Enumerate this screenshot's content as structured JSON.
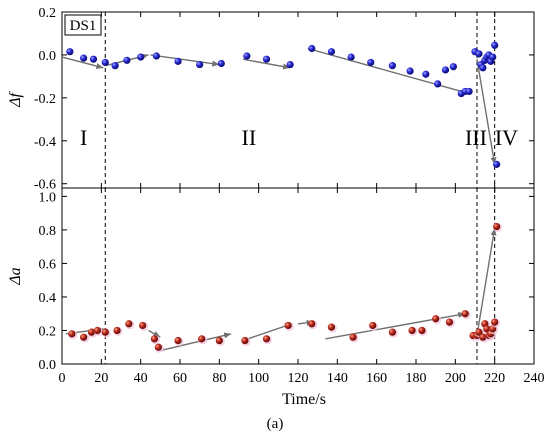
{
  "chart_data": [
    {
      "type": "scatter",
      "panel": "top",
      "tag": "DS1",
      "ylabel": "Δf",
      "ylim": [
        -0.62,
        0.2
      ],
      "yticks": [
        0.2,
        0.0,
        -0.2,
        -0.4,
        -0.6
      ],
      "xlim": [
        0,
        240
      ],
      "grid": false,
      "marker_color": "#2b2bd6",
      "points": [
        [
          4,
          0.015
        ],
        [
          11,
          -0.015
        ],
        [
          16,
          -0.02
        ],
        [
          22,
          -0.035
        ],
        [
          27,
          -0.05
        ],
        [
          33,
          -0.025
        ],
        [
          40,
          -0.01
        ],
        [
          48,
          -0.005
        ],
        [
          59,
          -0.03
        ],
        [
          70,
          -0.045
        ],
        [
          81,
          -0.04
        ],
        [
          94,
          -0.005
        ],
        [
          104,
          -0.02
        ],
        [
          116,
          -0.045
        ],
        [
          127,
          0.03
        ],
        [
          137,
          0.015
        ],
        [
          147,
          -0.01
        ],
        [
          157,
          -0.035
        ],
        [
          168,
          -0.05
        ],
        [
          177,
          -0.075
        ],
        [
          185,
          -0.09
        ],
        [
          191,
          -0.135
        ],
        [
          195,
          -0.07
        ],
        [
          199,
          -0.055
        ],
        [
          203,
          -0.18
        ],
        [
          205,
          -0.17
        ],
        [
          207,
          -0.17
        ],
        [
          210,
          0.015
        ],
        [
          212,
          0.005
        ],
        [
          213,
          -0.045
        ],
        [
          214,
          -0.06
        ],
        [
          215,
          -0.025
        ],
        [
          216,
          -0.01
        ],
        [
          217,
          0.0
        ],
        [
          218,
          -0.03
        ],
        [
          219,
          -0.01
        ],
        [
          220,
          0.045
        ],
        [
          221,
          -0.51
        ]
      ],
      "trend_arrows": [
        [
          [
            0,
            -0.01
          ],
          [
            21,
            -0.06
          ]
        ],
        [
          [
            22,
            -0.05
          ],
          [
            44,
            0.0
          ]
        ],
        [
          [
            45,
            0.0
          ],
          [
            80,
            -0.045
          ]
        ],
        [
          [
            92,
            -0.02
          ],
          [
            116,
            -0.06
          ]
        ],
        [
          [
            125,
            0.03
          ],
          [
            207,
            -0.18
          ]
        ],
        [
          [
            211,
            -0.02
          ],
          [
            220,
            -0.51
          ]
        ]
      ],
      "vlines": [
        22,
        211,
        220
      ],
      "regions": [
        "I",
        "II",
        "III",
        "IV"
      ]
    },
    {
      "type": "scatter",
      "panel": "bottom",
      "ylabel": "Δa",
      "xlabel": "Time/s",
      "ylim": [
        0.0,
        1.05
      ],
      "yticks": [
        0.0,
        0.2,
        0.4,
        0.6,
        0.8,
        1.0
      ],
      "xlim": [
        0,
        240
      ],
      "xticks": [
        0,
        20,
        40,
        60,
        80,
        100,
        120,
        140,
        160,
        180,
        200,
        220,
        240
      ],
      "grid": false,
      "marker_color": "#c0281e",
      "points": [
        [
          5,
          0.18
        ],
        [
          11,
          0.16
        ],
        [
          15,
          0.19
        ],
        [
          18,
          0.2
        ],
        [
          22,
          0.19
        ],
        [
          28,
          0.2
        ],
        [
          34,
          0.24
        ],
        [
          41,
          0.23
        ],
        [
          47,
          0.15
        ],
        [
          49,
          0.1
        ],
        [
          59,
          0.14
        ],
        [
          71,
          0.15
        ],
        [
          80,
          0.14
        ],
        [
          93,
          0.14
        ],
        [
          104,
          0.15
        ],
        [
          115,
          0.23
        ],
        [
          127,
          0.24
        ],
        [
          137,
          0.22
        ],
        [
          148,
          0.16
        ],
        [
          158,
          0.23
        ],
        [
          168,
          0.19
        ],
        [
          178,
          0.2
        ],
        [
          183,
          0.2
        ],
        [
          190,
          0.27
        ],
        [
          197,
          0.25
        ],
        [
          205,
          0.3
        ],
        [
          209,
          0.17
        ],
        [
          211,
          0.17
        ],
        [
          212,
          0.19
        ],
        [
          214,
          0.16
        ],
        [
          215,
          0.24
        ],
        [
          216,
          0.21
        ],
        [
          217,
          0.17
        ],
        [
          218,
          0.18
        ],
        [
          219,
          0.21
        ],
        [
          220,
          0.25
        ],
        [
          221,
          0.82
        ]
      ],
      "trend_arrows": [
        [
          [
            2,
            0.18
          ],
          [
            21,
            0.21
          ]
        ],
        [
          [
            44,
            0.2
          ],
          [
            50,
            0.16
          ]
        ],
        [
          [
            50,
            0.08
          ],
          [
            86,
            0.18
          ]
        ],
        [
          [
            92,
            0.14
          ],
          [
            117,
            0.24
          ]
        ],
        [
          [
            120,
            0.24
          ],
          [
            128,
            0.25
          ]
        ],
        [
          [
            134,
            0.15
          ],
          [
            205,
            0.3
          ]
        ],
        [
          [
            211,
            0.17
          ],
          [
            220,
            0.81
          ]
        ]
      ],
      "vlines": [
        22,
        211,
        220
      ]
    }
  ],
  "caption": "(a)"
}
